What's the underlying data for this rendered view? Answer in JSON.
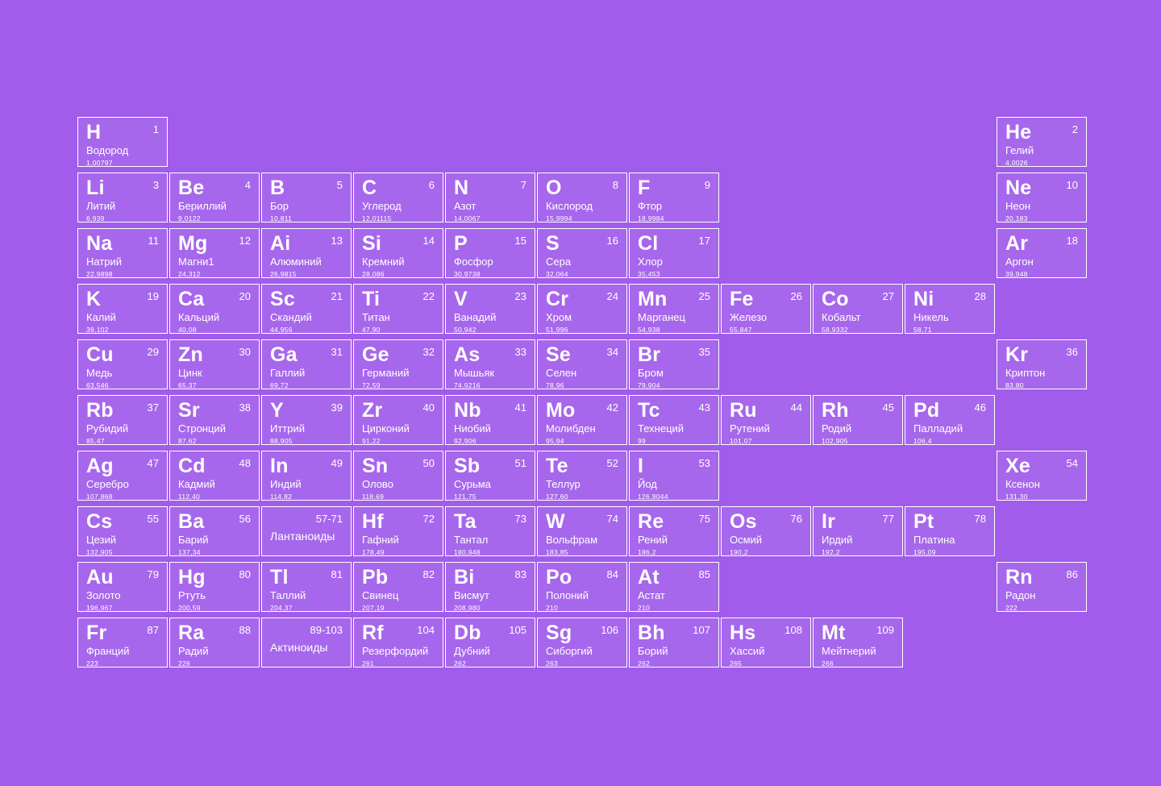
{
  "page": {
    "background_color": "#a15ceb",
    "cell_fill_color": "rgba(255,255,255,0.07)",
    "border_color": "#ffffff",
    "text_color": "#ffffff"
  },
  "table": {
    "columns": 11,
    "rows": 10,
    "cells": [
      {
        "symbol": "H",
        "number": "1",
        "name": "Водород",
        "mass": "1,00797",
        "row": 1,
        "col": 1
      },
      {
        "symbol": "He",
        "number": "2",
        "name": "Гелий",
        "mass": "4,0026",
        "row": 1,
        "col": 11
      },
      {
        "symbol": "Li",
        "number": "3",
        "name": "Литий",
        "mass": "6,939",
        "row": 2,
        "col": 1
      },
      {
        "symbol": "Be",
        "number": "4",
        "name": "Бериллий",
        "mass": "9,0122",
        "row": 2,
        "col": 2
      },
      {
        "symbol": "B",
        "number": "5",
        "name": "Бор",
        "mass": "10,811",
        "row": 2,
        "col": 3
      },
      {
        "symbol": "C",
        "number": "6",
        "name": "Углерод",
        "mass": "12,01115",
        "row": 2,
        "col": 4
      },
      {
        "symbol": "N",
        "number": "7",
        "name": "Азот",
        "mass": "14,0067",
        "row": 2,
        "col": 5
      },
      {
        "symbol": "O",
        "number": "8",
        "name": "Кислород",
        "mass": "15,9994",
        "row": 2,
        "col": 6
      },
      {
        "symbol": "F",
        "number": "9",
        "name": "Фтор",
        "mass": "18,9984",
        "row": 2,
        "col": 7
      },
      {
        "symbol": "Ne",
        "number": "10",
        "name": "Неон",
        "mass": "20,183",
        "row": 2,
        "col": 11
      },
      {
        "symbol": "Na",
        "number": "11",
        "name": "Натрий",
        "mass": "22,9898",
        "row": 3,
        "col": 1
      },
      {
        "symbol": "Mg",
        "number": "12",
        "name": "Магни1",
        "mass": "24,312",
        "row": 3,
        "col": 2
      },
      {
        "symbol": "Ai",
        "number": "13",
        "name": "Алюминий",
        "mass": "26,9815",
        "row": 3,
        "col": 3
      },
      {
        "symbol": "Si",
        "number": "14",
        "name": "Кремний",
        "mass": "28,086",
        "row": 3,
        "col": 4
      },
      {
        "symbol": "P",
        "number": "15",
        "name": "Фосфор",
        "mass": "30,9738",
        "row": 3,
        "col": 5
      },
      {
        "symbol": "S",
        "number": "16",
        "name": "Сера",
        "mass": "32,064",
        "row": 3,
        "col": 6
      },
      {
        "symbol": "Cl",
        "number": "17",
        "name": "Хлор",
        "mass": "35,453",
        "row": 3,
        "col": 7
      },
      {
        "symbol": "Ar",
        "number": "18",
        "name": "Аргон",
        "mass": "39,948",
        "row": 3,
        "col": 11
      },
      {
        "symbol": "K",
        "number": "19",
        "name": "Калий",
        "mass": "39,102",
        "row": 4,
        "col": 1
      },
      {
        "symbol": "Ca",
        "number": "20",
        "name": "Кальций",
        "mass": "40,08",
        "row": 4,
        "col": 2
      },
      {
        "symbol": "Sc",
        "number": "21",
        "name": "Скандий",
        "mass": "44,956",
        "row": 4,
        "col": 3
      },
      {
        "symbol": "Ti",
        "number": "22",
        "name": "Титан",
        "mass": "47,90",
        "row": 4,
        "col": 4
      },
      {
        "symbol": "V",
        "number": "23",
        "name": "Ванадий",
        "mass": "50,942",
        "row": 4,
        "col": 5
      },
      {
        "symbol": "Cr",
        "number": "24",
        "name": "Хром",
        "mass": "51,996",
        "row": 4,
        "col": 6
      },
      {
        "symbol": "Mn",
        "number": "25",
        "name": "Марганец",
        "mass": "54,938",
        "row": 4,
        "col": 7
      },
      {
        "symbol": "Fe",
        "number": "26",
        "name": "Железо",
        "mass": "55,847",
        "row": 4,
        "col": 8
      },
      {
        "symbol": "Co",
        "number": "27",
        "name": "Кобальт",
        "mass": "58,9332",
        "row": 4,
        "col": 9
      },
      {
        "symbol": "Ni",
        "number": "28",
        "name": "Никель",
        "mass": "58,71",
        "row": 4,
        "col": 10
      },
      {
        "symbol": "Cu",
        "number": "29",
        "name": "Медь",
        "mass": "63,546",
        "row": 5,
        "col": 1
      },
      {
        "symbol": "Zn",
        "number": "30",
        "name": "Цинк",
        "mass": "65,37",
        "row": 5,
        "col": 2
      },
      {
        "symbol": "Ga",
        "number": "31",
        "name": "Галлий",
        "mass": "69,72",
        "row": 5,
        "col": 3
      },
      {
        "symbol": "Ge",
        "number": "32",
        "name": "Германий",
        "mass": "72,59",
        "row": 5,
        "col": 4
      },
      {
        "symbol": "As",
        "number": "33",
        "name": "Мышьяк",
        "mass": "74,9216",
        "row": 5,
        "col": 5
      },
      {
        "symbol": "Se",
        "number": "34",
        "name": "Селен",
        "mass": "78,96",
        "row": 5,
        "col": 6
      },
      {
        "symbol": "Br",
        "number": "35",
        "name": "Бром",
        "mass": "79,904",
        "row": 5,
        "col": 7
      },
      {
        "symbol": "Kr",
        "number": "36",
        "name": "Криптон",
        "mass": "83,80",
        "row": 5,
        "col": 11
      },
      {
        "symbol": "Rb",
        "number": "37",
        "name": "Рубидий",
        "mass": "85,47",
        "row": 6,
        "col": 1
      },
      {
        "symbol": "Sr",
        "number": "38",
        "name": "Стронций",
        "mass": "87,62",
        "row": 6,
        "col": 2
      },
      {
        "symbol": "Y",
        "number": "39",
        "name": "Иттрий",
        "mass": "88,905",
        "row": 6,
        "col": 3
      },
      {
        "symbol": "Zr",
        "number": "40",
        "name": "Цирконий",
        "mass": "91,22",
        "row": 6,
        "col": 4
      },
      {
        "symbol": "Nb",
        "number": "41",
        "name": "Ниобий",
        "mass": "92,906",
        "row": 6,
        "col": 5
      },
      {
        "symbol": "Mo",
        "number": "42",
        "name": "Молибден",
        "mass": "95,94",
        "row": 6,
        "col": 6
      },
      {
        "symbol": "Tc",
        "number": "43",
        "name": "Технеций",
        "mass": "99",
        "row": 6,
        "col": 7
      },
      {
        "symbol": "Ru",
        "number": "44",
        "name": "Рутений",
        "mass": "101,07",
        "row": 6,
        "col": 8
      },
      {
        "symbol": "Rh",
        "number": "45",
        "name": "Родий",
        "mass": "102,905",
        "row": 6,
        "col": 9
      },
      {
        "symbol": "Pd",
        "number": "46",
        "name": "Палладий",
        "mass": "106,4",
        "row": 6,
        "col": 10
      },
      {
        "symbol": "Ag",
        "number": "47",
        "name": "Серебро",
        "mass": "107,868",
        "row": 7,
        "col": 1
      },
      {
        "symbol": "Cd",
        "number": "48",
        "name": "Кадмий",
        "mass": "112,40",
        "row": 7,
        "col": 2
      },
      {
        "symbol": "In",
        "number": "49",
        "name": "Индий",
        "mass": "114,82",
        "row": 7,
        "col": 3
      },
      {
        "symbol": "Sn",
        "number": "50",
        "name": "Олово",
        "mass": "118,69",
        "row": 7,
        "col": 4
      },
      {
        "symbol": "Sb",
        "number": "51",
        "name": "Сурьма",
        "mass": "121,75",
        "row": 7,
        "col": 5
      },
      {
        "symbol": "Te",
        "number": "52",
        "name": "Теллур",
        "mass": "127,60",
        "row": 7,
        "col": 6
      },
      {
        "symbol": "I",
        "number": "53",
        "name": "Йод",
        "mass": "126,9044",
        "row": 7,
        "col": 7
      },
      {
        "symbol": "Xe",
        "number": "54",
        "name": "Ксенон",
        "mass": "131,30",
        "row": 7,
        "col": 11
      },
      {
        "symbol": "Cs",
        "number": "55",
        "name": "Цезий",
        "mass": "132,905",
        "row": 8,
        "col": 1
      },
      {
        "symbol": "Ba",
        "number": "56",
        "name": "Барий",
        "mass": "137,34",
        "row": 8,
        "col": 2
      },
      {
        "symbol": "",
        "number": "57-71",
        "name": "Лантаноиды",
        "mass": "",
        "row": 8,
        "col": 3,
        "range": true
      },
      {
        "symbol": "Hf",
        "number": "72",
        "name": "Гафний",
        "mass": "178,49",
        "row": 8,
        "col": 4
      },
      {
        "symbol": "Ta",
        "number": "73",
        "name": "Тантал",
        "mass": "180,948",
        "row": 8,
        "col": 5
      },
      {
        "symbol": "W",
        "number": "74",
        "name": "Вольфрам",
        "mass": "183,85",
        "row": 8,
        "col": 6
      },
      {
        "symbol": "Re",
        "number": "75",
        "name": "Рений",
        "mass": "186,2",
        "row": 8,
        "col": 7
      },
      {
        "symbol": "Os",
        "number": "76",
        "name": "Осмий",
        "mass": "190,2",
        "row": 8,
        "col": 8
      },
      {
        "symbol": "Ir",
        "number": "77",
        "name": "Ирдий",
        "mass": "192,2",
        "row": 8,
        "col": 9
      },
      {
        "symbol": "Pt",
        "number": "78",
        "name": "Платина",
        "mass": "195,09",
        "row": 8,
        "col": 10
      },
      {
        "symbol": "Au",
        "number": "79",
        "name": "Золото",
        "mass": "196,967",
        "row": 9,
        "col": 1
      },
      {
        "symbol": "Hg",
        "number": "80",
        "name": "Ртуть",
        "mass": "200,59",
        "row": 9,
        "col": 2
      },
      {
        "symbol": "Tl",
        "number": "81",
        "name": "Таллий",
        "mass": "204,37",
        "row": 9,
        "col": 3
      },
      {
        "symbol": "Pb",
        "number": "82",
        "name": "Свинец",
        "mass": "207,19",
        "row": 9,
        "col": 4
      },
      {
        "symbol": "Bi",
        "number": "83",
        "name": "Висмут",
        "mass": "208,980",
        "row": 9,
        "col": 5
      },
      {
        "symbol": "Po",
        "number": "84",
        "name": "Полоний",
        "mass": "210",
        "row": 9,
        "col": 6
      },
      {
        "symbol": "At",
        "number": "85",
        "name": "Астат",
        "mass": "210",
        "row": 9,
        "col": 7
      },
      {
        "symbol": "Rn",
        "number": "86",
        "name": "Радон",
        "mass": "222",
        "row": 9,
        "col": 11
      },
      {
        "symbol": "Fr",
        "number": "87",
        "name": "Франций",
        "mass": "223",
        "row": 10,
        "col": 1
      },
      {
        "symbol": "Ra",
        "number": "88",
        "name": "Радий",
        "mass": "226",
        "row": 10,
        "col": 2
      },
      {
        "symbol": "",
        "number": "89-103",
        "name": "Актиноиды",
        "mass": "",
        "row": 10,
        "col": 3,
        "range": true
      },
      {
        "symbol": "Rf",
        "number": "104",
        "name": "Резерфордий",
        "mass": "261",
        "row": 10,
        "col": 4
      },
      {
        "symbol": "Db",
        "number": "105",
        "name": "Дубний",
        "mass": "262",
        "row": 10,
        "col": 5
      },
      {
        "symbol": "Sg",
        "number": "106",
        "name": "Сиборгий",
        "mass": "263",
        "row": 10,
        "col": 6
      },
      {
        "symbol": "Bh",
        "number": "107",
        "name": "Борий",
        "mass": "262",
        "row": 10,
        "col": 7
      },
      {
        "symbol": "Hs",
        "number": "108",
        "name": "Хассий",
        "mass": "265",
        "row": 10,
        "col": 8
      },
      {
        "symbol": "Mt",
        "number": "109",
        "name": "Мейтнерий",
        "mass": "266",
        "row": 10,
        "col": 9
      }
    ]
  }
}
